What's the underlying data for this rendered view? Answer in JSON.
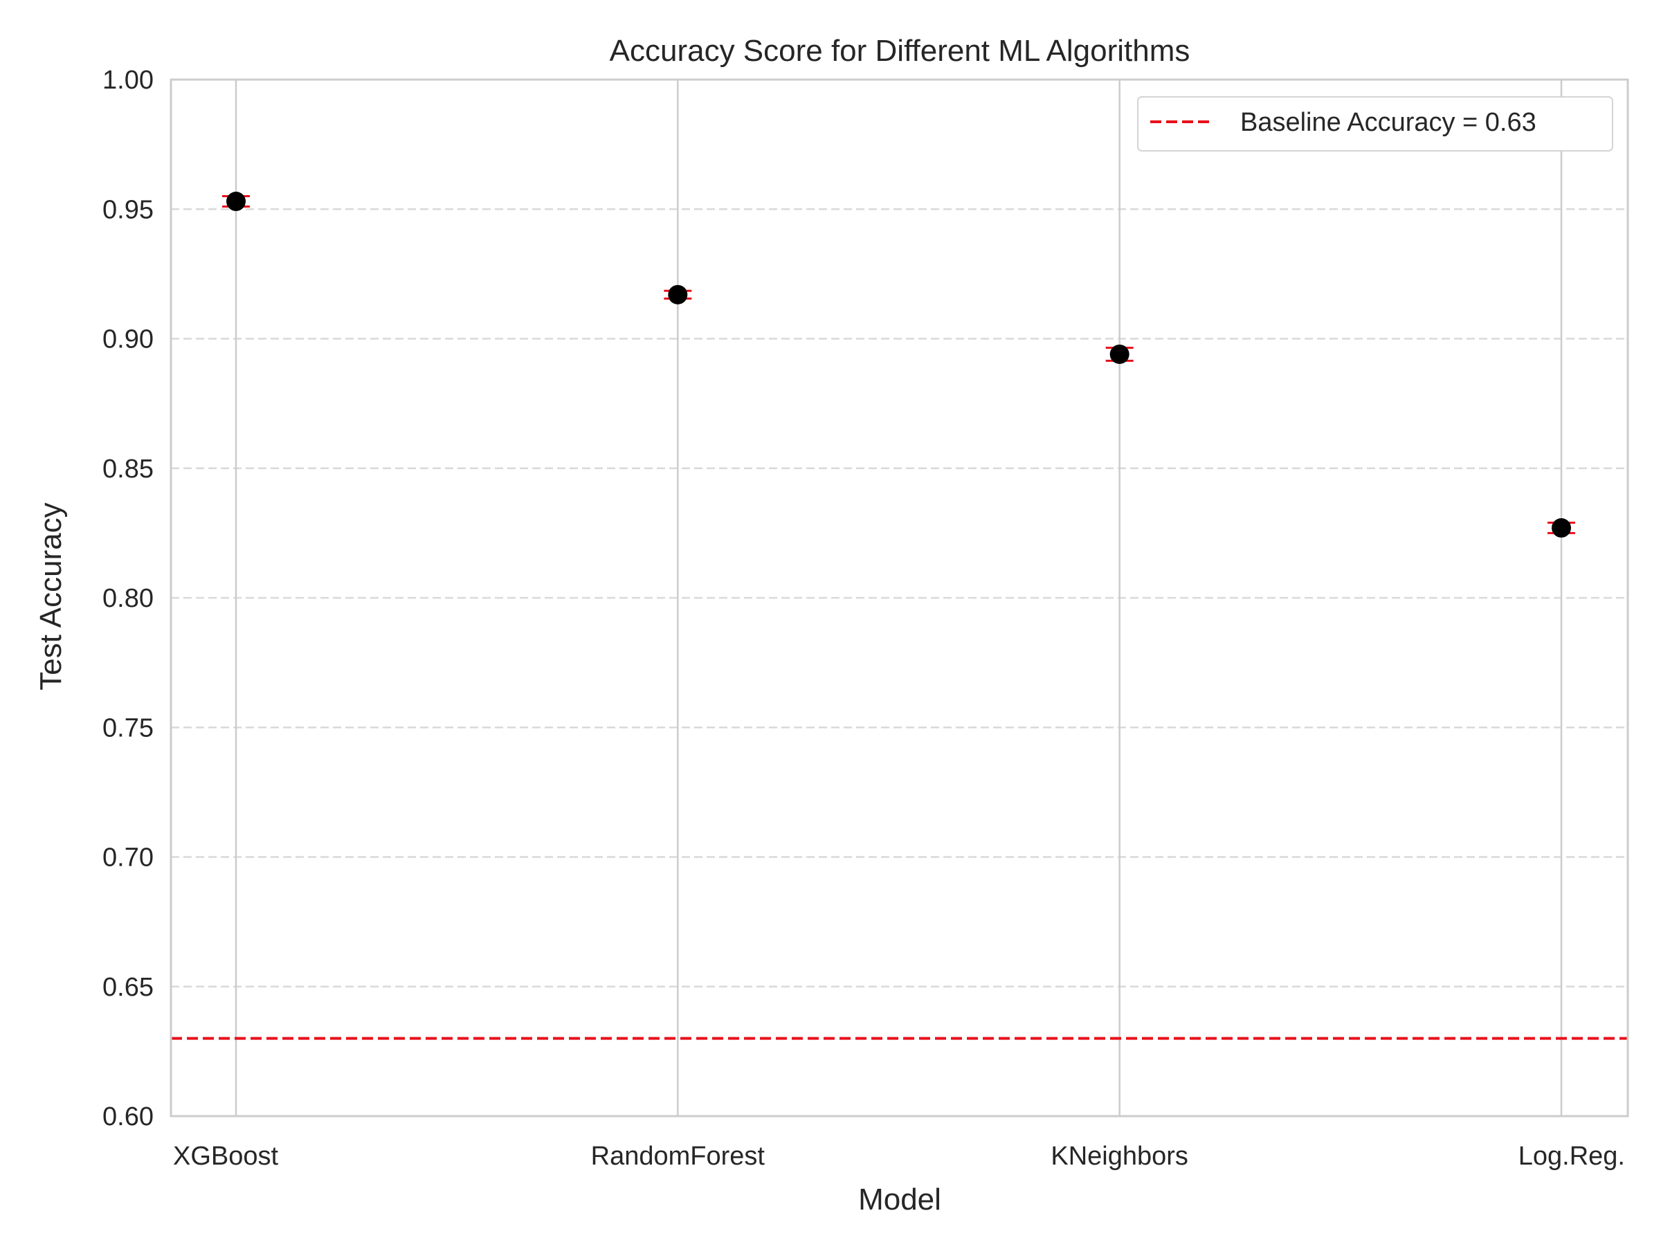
{
  "chart_data": {
    "type": "scatter",
    "title": "Accuracy Score for Different ML Algorithms",
    "xlabel": "Model",
    "ylabel": "Test Accuracy",
    "categories": [
      "XGBoost",
      "RandomForest",
      "KNeighbors",
      "Log.Reg."
    ],
    "series": [
      {
        "values": [
          0.953,
          0.917,
          0.894,
          0.827
        ],
        "error": [
          0.002,
          0.0015,
          0.0025,
          0.002
        ]
      }
    ],
    "baseline": {
      "value": 0.63,
      "label": "Baseline Accuracy = 0.63"
    },
    "ylim": [
      0.6,
      1.0
    ],
    "yticks": [
      "0.60",
      "0.65",
      "0.70",
      "0.75",
      "0.80",
      "0.85",
      "0.90",
      "0.95",
      "1.00"
    ],
    "grid": {
      "horizontal": "dashed",
      "vertical": "solid"
    },
    "legend_position": "top-right",
    "colors": {
      "marker": "#000000",
      "error_bar": "#e8101b",
      "baseline": "#e8101b",
      "grid": "#d9d9d9",
      "axis": "#cccccc"
    }
  }
}
